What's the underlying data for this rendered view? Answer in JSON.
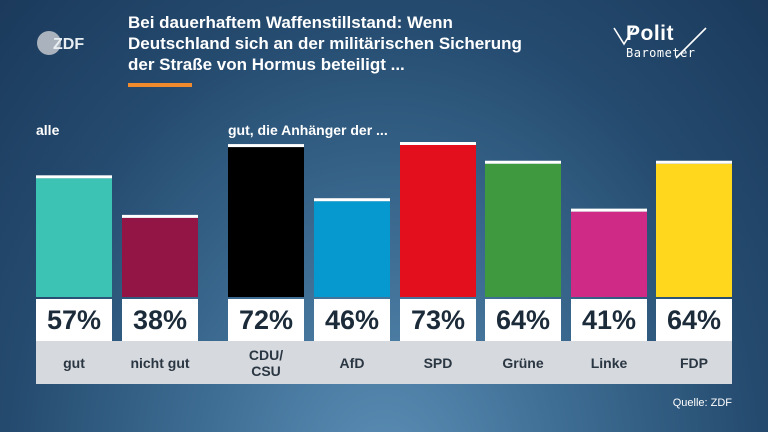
{
  "title_lines": [
    "Bei dauerhaftem Waffenstillstand: Wenn",
    "Deutschland sich an der militärischen Sicherung",
    "der Straße von Hormus beteiligt ..."
  ],
  "branding": {
    "zdf_logo": "ZDF",
    "polit": "Polit",
    "barometer": "Barometer"
  },
  "source": "Quelle: ZDF",
  "chart_data": {
    "type": "bar",
    "groups": [
      {
        "label": "alle",
        "start": 0,
        "count": 2
      },
      {
        "label": "gut, die Anhänger der ...",
        "start": 2,
        "count": 6
      }
    ],
    "categories": [
      "gut",
      "nicht gut",
      "CDU/\nCSU",
      "AfD",
      "SPD",
      "Grüne",
      "Linke",
      "FDP"
    ],
    "values": [
      57,
      38,
      72,
      46,
      73,
      64,
      41,
      64
    ],
    "value_labels": [
      "57%",
      "38%",
      "72%",
      "46%",
      "73%",
      "64%",
      "41%",
      "64%"
    ],
    "unit": "%",
    "colors": [
      "#3cc3b4",
      "#921545",
      "#000000",
      "#0599cf",
      "#e30f1c",
      "#3f9a3f",
      "#cf2a86",
      "#ffd71c"
    ],
    "ylim": [
      0,
      73
    ]
  }
}
